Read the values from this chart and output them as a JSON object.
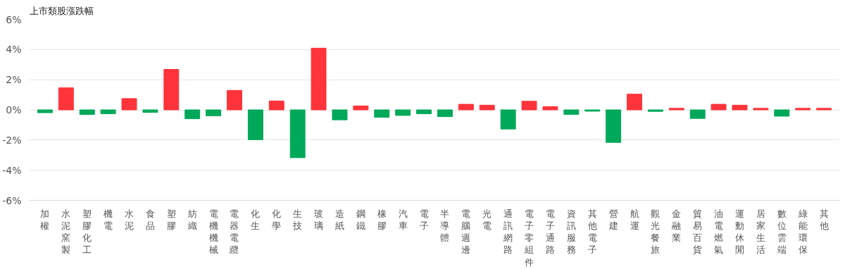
{
  "chart_data": {
    "type": "bar",
    "title": "上市類股漲跌幅",
    "categories": [
      "加權",
      "水泥窯製",
      "塑膠化工",
      "機電",
      "水泥",
      "食品",
      "塑膠",
      "紡織",
      "電機機械",
      "電器電纜",
      "化生",
      "化學",
      "生技",
      "玻璃",
      "造紙",
      "鋼鐵",
      "橡膠",
      "汽車",
      "電子",
      "半導體",
      "電腦週邊",
      "光電",
      "通訊網路",
      "電子零組件",
      "電子通路",
      "資訊服務",
      "其他電子",
      "營建",
      "航運",
      "觀光餐旅",
      "金融業",
      "貿易百貨",
      "油電燃氣",
      "運動休閒",
      "居家生活",
      "數位雲端",
      "綠能環保",
      "其他"
    ],
    "values": [
      -0.19,
      1.46,
      -0.31,
      -0.26,
      0.75,
      -0.17,
      2.68,
      -0.59,
      -0.4,
      1.29,
      -1.98,
      0.59,
      -3.17,
      4.09,
      -0.66,
      0.26,
      -0.49,
      -0.37,
      -0.26,
      -0.45,
      0.37,
      0.31,
      -1.27,
      0.57,
      0.21,
      -0.3,
      -0.09,
      -2.16,
      1.04,
      -0.1,
      0.1,
      -0.57,
      0.37,
      0.31,
      0.1,
      -0.42,
      0.1,
      0.1
    ],
    "colors": [
      "#00a85a",
      "#ff333a",
      "#00a85a",
      "#00a85a",
      "#ff333a",
      "#00a85a",
      "#ff333a",
      "#00a85a",
      "#00a85a",
      "#ff333a",
      "#00a85a",
      "#ff333a",
      "#00a85a",
      "#ff333a",
      "#00a85a",
      "#ff333a",
      "#00a85a",
      "#00a85a",
      "#00a85a",
      "#00a85a",
      "#ff333a",
      "#ff333a",
      "#00a85a",
      "#ff333a",
      "#ff333a",
      "#00a85a",
      "#00a85a",
      "#00a85a",
      "#ff333a",
      "#00a85a",
      "#ff333a",
      "#00a85a",
      "#ff333a",
      "#ff333a",
      "#ff333a",
      "#00a85a",
      "#ff333a",
      "#ff333a"
    ],
    "ylim": [
      -6,
      6
    ],
    "yticks": [
      {
        "value": -6,
        "label": "-6%"
      },
      {
        "value": -4,
        "label": "-4%"
      },
      {
        "value": -2,
        "label": "-2%"
      },
      {
        "value": 0,
        "label": "0%"
      },
      {
        "value": 2,
        "label": "2%"
      },
      {
        "value": 4,
        "label": "4%"
      },
      {
        "value": 6,
        "label": "6%"
      }
    ],
    "grid": "y"
  }
}
